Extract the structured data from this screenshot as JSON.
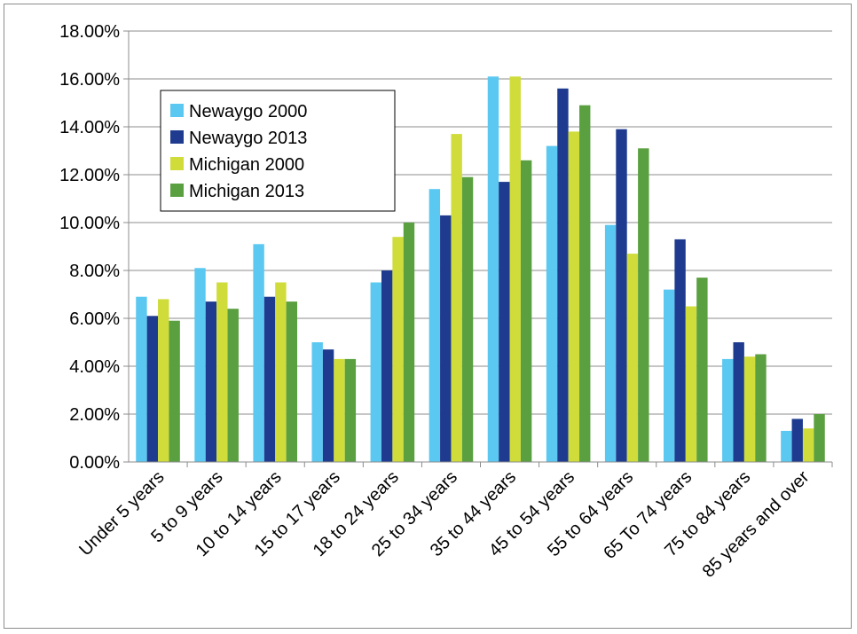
{
  "chart_data": {
    "type": "bar",
    "categories": [
      "Under 5 years",
      "5 to 9 years",
      "10 to 14 years",
      "15 to 17 years",
      "18 to 24 years",
      "25 to 34 years",
      "35 to 44 years",
      "45 to 54 years",
      "55 to 64 years",
      "65 To 74 years",
      "75 to 84 years",
      "85 years and over"
    ],
    "series": [
      {
        "name": "Newaygo 2000",
        "color": "#5bc8f1",
        "values": [
          6.9,
          8.1,
          9.1,
          5.0,
          7.5,
          11.4,
          16.1,
          13.2,
          9.9,
          7.2,
          4.3,
          1.3
        ]
      },
      {
        "name": "Newaygo 2013",
        "color": "#1f3b8f",
        "values": [
          6.1,
          6.7,
          6.9,
          4.7,
          8.0,
          10.3,
          11.7,
          15.6,
          13.9,
          9.3,
          5.0,
          1.8
        ]
      },
      {
        "name": "Michigan 2000",
        "color": "#cfdc3a",
        "values": [
          6.8,
          7.5,
          7.5,
          4.3,
          9.4,
          13.7,
          16.1,
          13.8,
          8.7,
          6.5,
          4.4,
          1.4
        ]
      },
      {
        "name": "Michigan 2013",
        "color": "#5aa040",
        "values": [
          5.9,
          6.4,
          6.7,
          4.3,
          10.0,
          11.9,
          12.6,
          14.9,
          13.1,
          7.7,
          4.5,
          2.0
        ]
      }
    ],
    "ylim": [
      0,
      18
    ],
    "yticks": [
      "0.00%",
      "2.00%",
      "4.00%",
      "6.00%",
      "8.00%",
      "10.00%",
      "12.00%",
      "14.00%",
      "16.00%",
      "18.00%"
    ],
    "grid": true,
    "legend_position": "upper-left",
    "title": "",
    "xlabel": "",
    "ylabel": ""
  }
}
